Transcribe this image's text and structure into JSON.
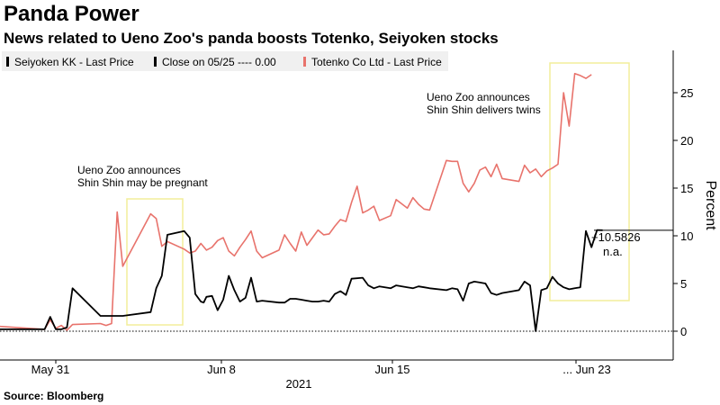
{
  "header": {
    "title": "Panda Power",
    "subtitle": "News related to Ueno Zoo's panda boosts Totenko, Seiyoken stocks"
  },
  "footer": {
    "source": "Source: Bloomberg"
  },
  "colors": {
    "seiyoken": "#000000",
    "totenko": "#e8736c",
    "highlight_box": "#f2ee9a",
    "zero_line": "#000000",
    "legend_bg": "#f0f0f0"
  },
  "chart_data": {
    "type": "line",
    "title": "Panda Power",
    "ylabel": "Percent",
    "ylim": [
      -2,
      29
    ],
    "yticks": [
      0,
      5,
      10,
      15,
      20,
      25
    ],
    "x_tick_labels": [
      "May 31",
      "Jun 8",
      "Jun 15",
      "... Jun 23"
    ],
    "x_year_label": "2021",
    "legend": [
      {
        "name": "Seiyoken KK - Last Price",
        "color": "#000000",
        "style": "solid"
      },
      {
        "name": "Close on 05/25 ---- 0.00",
        "color": "#000000",
        "style": "dashed"
      },
      {
        "name": "Totenko Co Ltd - Last Price",
        "color": "#e8736c",
        "style": "solid"
      }
    ],
    "last_value_label": "+10.5826",
    "na_label": "n.a.",
    "annotations": [
      {
        "text": [
          "Ueno Zoo announces",
          "Shin Shin may be pregnant"
        ]
      },
      {
        "text": [
          "Ueno Zoo announces",
          "Shin Shin delivers twins"
        ]
      }
    ],
    "series": [
      {
        "name": "Seiyoken KK - Last Price",
        "color": "#000000",
        "t": [
          0,
          8,
          9,
          10,
          11,
          12,
          13,
          18,
          19,
          20,
          21,
          22,
          27,
          28,
          29,
          30,
          33,
          34,
          35,
          36,
          36.5,
          37,
          38,
          39,
          40,
          41,
          42,
          43,
          44,
          45,
          46,
          47,
          50,
          51,
          52,
          53,
          54,
          55,
          56,
          57,
          58,
          59,
          60,
          61,
          62,
          63,
          65,
          66,
          67,
          68,
          70,
          71,
          73,
          74,
          75,
          76,
          77,
          80,
          81,
          82,
          83,
          84,
          85,
          86,
          87,
          88,
          89,
          90,
          93,
          94,
          95,
          96,
          97,
          98,
          99,
          100,
          101,
          102,
          103,
          104,
          105,
          106,
          107,
          108
        ],
        "values": [
          0.2,
          0.2,
          1.5,
          0.2,
          0.2,
          0.4,
          4.5,
          1.6,
          1.6,
          1.6,
          1.6,
          1.6,
          2.0,
          4.5,
          5.8,
          10.1,
          10.5,
          9.8,
          3.9,
          3.1,
          3.0,
          3.6,
          3.7,
          2.2,
          3.3,
          5.8,
          4.3,
          3.1,
          3.5,
          5.6,
          3.1,
          3.2,
          3.0,
          3.0,
          3.4,
          3.4,
          3.3,
          3.2,
          3.1,
          3.1,
          3.2,
          3.1,
          3.9,
          4.2,
          3.8,
          5.5,
          5.6,
          4.8,
          4.5,
          4.7,
          4.5,
          4.8,
          4.6,
          4.5,
          4.7,
          4.6,
          4.5,
          4.3,
          4.5,
          4.4,
          3.2,
          5.0,
          5.2,
          5.1,
          5.0,
          4.0,
          3.8,
          4.0,
          4.3,
          5.2,
          4.8,
          0.0,
          4.3,
          4.5,
          5.7,
          5.0,
          4.6,
          4.4,
          4.5,
          4.6,
          10.5,
          8.8,
          10.6,
          10.5826
        ]
      },
      {
        "name": "Totenko Co Ltd - Last Price",
        "color": "#e8736c",
        "t": [
          0,
          8,
          9,
          10,
          11,
          12,
          13,
          18,
          19,
          20,
          21,
          22,
          27,
          28,
          29,
          30,
          33,
          34,
          35,
          36,
          37,
          38,
          39,
          40,
          41,
          42,
          43,
          44,
          45,
          46,
          47,
          50,
          51,
          52,
          53,
          54,
          55,
          56,
          57,
          58,
          59,
          60,
          61,
          62,
          63,
          64,
          65,
          66,
          67,
          68,
          70,
          71,
          73,
          74,
          75,
          76,
          77,
          80,
          81,
          82,
          83,
          84,
          85,
          86,
          87,
          88,
          89,
          90,
          93,
          94,
          95,
          96,
          97,
          98,
          99,
          100,
          101,
          102,
          103,
          104,
          105,
          106
        ],
        "values": [
          0.5,
          0.2,
          1.2,
          0.3,
          0.6,
          0.1,
          0.7,
          0.8,
          0.6,
          0.8,
          12.5,
          6.8,
          12.3,
          11.8,
          8.9,
          9.4,
          8.6,
          8.2,
          8.4,
          9.2,
          8.5,
          8.8,
          9.5,
          9.8,
          8.4,
          7.9,
          8.8,
          9.6,
          10.5,
          8.4,
          7.7,
          8.5,
          10.1,
          9.2,
          8.4,
          10.4,
          9.0,
          9.8,
          10.6,
          10.1,
          10.2,
          11.0,
          11.7,
          11.5,
          13.5,
          15.2,
          12.4,
          12.7,
          13.1,
          11.6,
          12.1,
          13.8,
          12.9,
          14.0,
          13.3,
          12.8,
          12.7,
          17.9,
          17.8,
          17.8,
          15.5,
          14.6,
          15.5,
          16.9,
          17.2,
          16.2,
          17.5,
          16.0,
          15.7,
          17.4,
          16.6,
          17.0,
          16.2,
          16.8,
          17.1,
          17.5,
          25.0,
          21.5,
          27.0,
          26.8,
          26.5,
          26.9
        ]
      }
    ],
    "zero_reference": 0.0
  }
}
